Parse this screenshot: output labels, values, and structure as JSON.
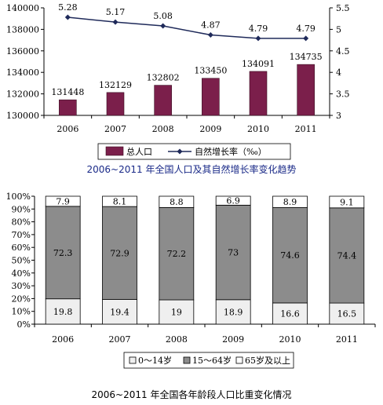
{
  "chart_data": [
    {
      "type": "bar",
      "title": "2006~2011 年全国人口及其自然增长率变化趋势",
      "categories": [
        "2006",
        "2007",
        "2008",
        "2009",
        "2010",
        "2011"
      ],
      "series": [
        {
          "name": "总人口",
          "type": "bar",
          "axis": "left",
          "color": "#7b1f4b",
          "values": [
            131448,
            132129,
            132802,
            133450,
            134091,
            134735
          ]
        },
        {
          "name": "自然增长率（‰）",
          "type": "line",
          "axis": "right",
          "color": "#1f2a5a",
          "values": [
            5.28,
            5.17,
            5.08,
            4.87,
            4.79,
            4.79
          ]
        }
      ],
      "y_left": {
        "min": 130000,
        "max": 140000,
        "ticks": [
          "130000",
          "132000",
          "134000",
          "136000",
          "138000",
          "140000"
        ]
      },
      "y_right": {
        "min": 3,
        "max": 5.5,
        "ticks": [
          "3",
          "3.5",
          "4",
          "4.5",
          "5",
          "5.5"
        ]
      },
      "legend": "bottom",
      "grid": false
    },
    {
      "type": "bar",
      "stacked": "percent",
      "title": "2006~2011 年全国各年龄段人口比重变化情况",
      "categories": [
        "2006",
        "2007",
        "2008",
        "2009",
        "2010",
        "2011"
      ],
      "series": [
        {
          "name": "0～14岁",
          "color": "#efefef",
          "values": [
            19.8,
            19.4,
            19,
            18.9,
            16.6,
            16.5
          ]
        },
        {
          "name": "15～64岁",
          "color": "#8c8c8c",
          "values": [
            72.3,
            72.9,
            72.2,
            73,
            74.6,
            74.4
          ]
        },
        {
          "name": "65岁及以上",
          "color": "#ffffff",
          "values": [
            7.9,
            8.1,
            8.8,
            6.9,
            8.9,
            9.1
          ]
        }
      ],
      "y_ticks": [
        "0%",
        "10%",
        "20%",
        "30%",
        "40%",
        "50%",
        "60%",
        "70%",
        "80%",
        "90%",
        "100%"
      ],
      "legend": "bottom",
      "grid": false
    }
  ]
}
